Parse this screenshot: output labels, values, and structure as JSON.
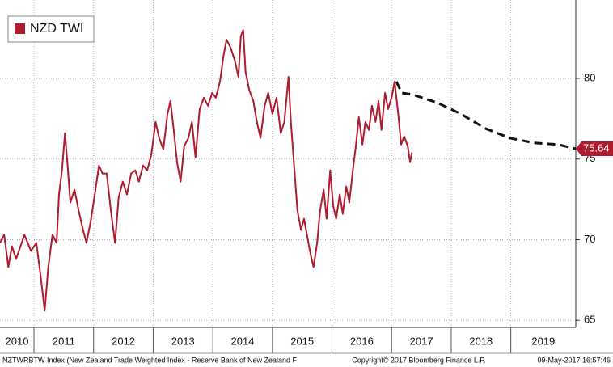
{
  "chart_data": {
    "type": "line",
    "xlim": [
      2010.43,
      2020.09
    ],
    "ylim": [
      64.56,
      84.86
    ],
    "xticks": [
      2010,
      2011,
      2012,
      2013,
      2014,
      2015,
      2016,
      2017,
      2018,
      2019
    ],
    "yticks": [
      65,
      70,
      75,
      80
    ],
    "grid": true,
    "legend": "top-left",
    "series": [
      {
        "name": "NZD TWI",
        "color": "#b01c2e",
        "x": [
          2010.43,
          2010.5,
          2010.57,
          2010.63,
          2010.7,
          2010.84,
          2010.95,
          2011.04,
          2011.11,
          2011.18,
          2011.24,
          2011.31,
          2011.38,
          2011.42,
          2011.47,
          2011.52,
          2011.56,
          2011.61,
          2011.68,
          2011.75,
          2011.81,
          2011.88,
          2011.95,
          2012.02,
          2012.09,
          2012.15,
          2012.22,
          2012.29,
          2012.36,
          2012.42,
          2012.49,
          2012.56,
          2012.63,
          2012.7,
          2012.76,
          2012.83,
          2012.9,
          2012.97,
          2013.04,
          2013.1,
          2013.17,
          2013.24,
          2013.29,
          2013.35,
          2013.4,
          2013.46,
          2013.52,
          2013.59,
          2013.65,
          2013.71,
          2013.78,
          2013.85,
          2013.92,
          2013.99,
          2014.05,
          2014.12,
          2014.18,
          2014.23,
          2014.3,
          2014.37,
          2014.43,
          2014.47,
          2014.51,
          2014.55,
          2014.61,
          2014.68,
          2014.74,
          2014.8,
          2014.87,
          2014.93,
          2015.0,
          2015.07,
          2015.14,
          2015.2,
          2015.27,
          2015.31,
          2015.37,
          2015.42,
          2015.48,
          2015.53,
          2015.59,
          2015.64,
          2015.69,
          2015.75,
          2015.8,
          2015.86,
          2015.91,
          2015.97,
          2016.02,
          2016.07,
          2016.13,
          2016.18,
          2016.24,
          2016.29,
          2016.35,
          2016.4,
          2016.45,
          2016.51,
          2016.56,
          2016.62,
          2016.67,
          2016.73,
          2016.78,
          2016.83,
          2016.89,
          2016.94,
          2017.0,
          2017.05,
          2017.11,
          2017.16,
          2017.21,
          2017.27,
          2017.31,
          2017.34
        ],
        "values": [
          69.8,
          70.3,
          68.3,
          69.6,
          68.8,
          70.3,
          69.3,
          69.8,
          67.8,
          65.6,
          68.3,
          70.3,
          69.8,
          72.8,
          74.3,
          76.6,
          74.8,
          72.3,
          73.1,
          71.8,
          70.8,
          69.8,
          71.1,
          72.8,
          74.6,
          74.1,
          74.1,
          71.8,
          69.8,
          72.6,
          73.6,
          72.8,
          74.1,
          74.3,
          73.6,
          74.6,
          74.3,
          75.3,
          77.3,
          76.3,
          75.6,
          77.8,
          78.6,
          76.6,
          74.8,
          73.6,
          75.8,
          76.3,
          77.3,
          75.1,
          78.1,
          78.8,
          78.3,
          79.1,
          78.8,
          79.8,
          81.4,
          82.4,
          81.9,
          81.1,
          80.1,
          82.6,
          83.0,
          80.4,
          79.3,
          78.6,
          77.3,
          76.3,
          78.3,
          79.1,
          77.8,
          78.8,
          76.6,
          77.3,
          80.1,
          77.3,
          74.3,
          71.8,
          70.6,
          71.3,
          70.1,
          69.1,
          68.3,
          69.8,
          71.8,
          73.1,
          71.3,
          74.3,
          72.1,
          71.3,
          72.8,
          71.6,
          73.3,
          72.3,
          74.3,
          75.8,
          77.6,
          75.9,
          77.3,
          76.8,
          78.3,
          77.3,
          78.6,
          76.8,
          79.1,
          78.1,
          78.8,
          79.8,
          77.8,
          75.9,
          76.4,
          75.8,
          74.8,
          75.4
        ]
      },
      {
        "color": "#111111",
        "dashed": true,
        "x": [
          2017.08,
          2017.17,
          2017.35,
          2017.76,
          2018.16,
          2018.57,
          2018.98,
          2019.39,
          2019.79,
          2020.09
        ],
        "values": [
          79.8,
          79.1,
          79.0,
          78.5,
          77.8,
          76.9,
          76.3,
          76.0,
          75.9,
          75.64
        ],
        "last_value": 75.64
      }
    ],
    "source": "NZTWRBTW Index (New Zealand Trade Weighted Index - Reserve Bank of New Zealand F",
    "copyright": "Copyright© 2017 Bloomberg Finance L.P.",
    "timestamp": "09-May-2017 16:57:46"
  }
}
